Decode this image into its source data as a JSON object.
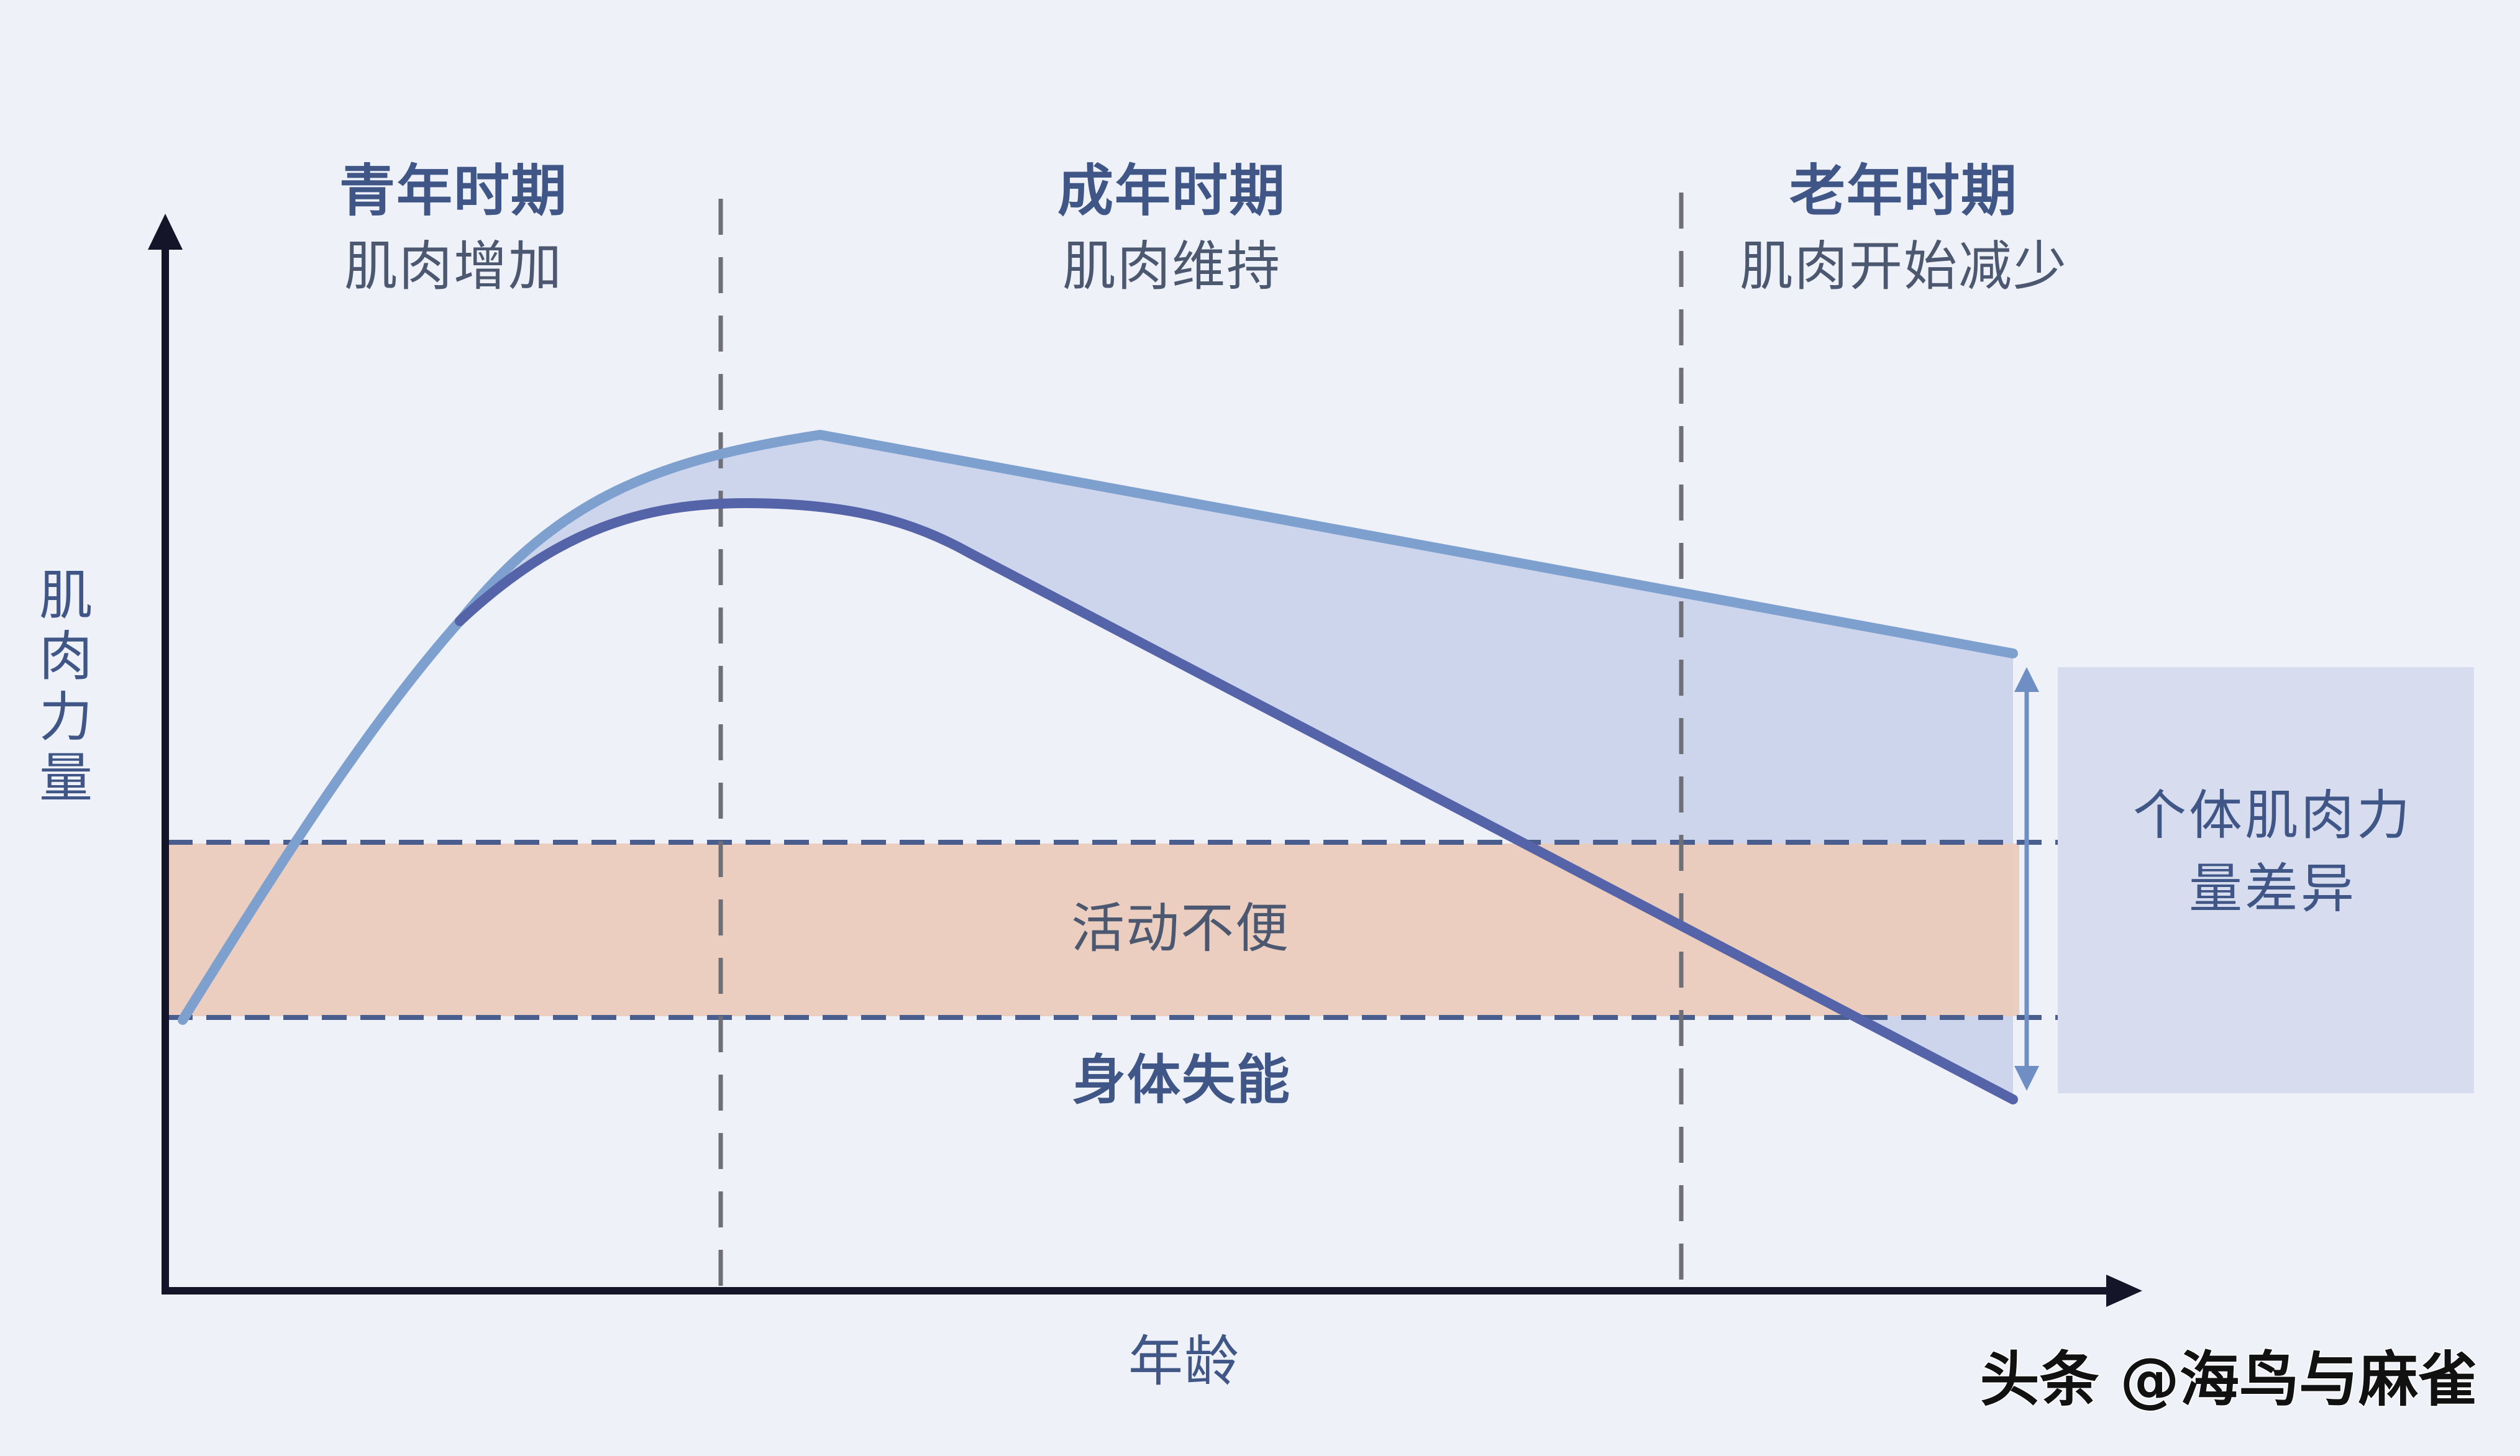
{
  "diagram": {
    "y_axis_label": "肌肉力量",
    "x_axis_label": "年龄",
    "stages": [
      {
        "title": "青年时期",
        "subtitle": "肌肉增加"
      },
      {
        "title": "成年时期",
        "subtitle": "肌肉维持"
      },
      {
        "title": "老年时期",
        "subtitle": "肌肉开始减少"
      }
    ],
    "zones": {
      "inconvenience": "活动不便",
      "disability": "身体失能"
    },
    "difference_box": {
      "line1": "个体肌肉力",
      "line2": "量差异"
    },
    "colors": {
      "background": "#eef1f8",
      "upper_curve": "#7da0cf",
      "lower_curve": "#5563a8",
      "gap_fill": "#c6d0ea",
      "zone_fill": "#ebcbbd",
      "zone_line": "#4a5d8f",
      "axis": "#15152a",
      "divider": "#6f6f78",
      "text_heading": "#3f5686",
      "text_body": "#4c5870",
      "diff_box": "#d7ddef",
      "watermark": "#111111"
    }
  },
  "watermark": "头条 @海鸟与麻雀"
}
